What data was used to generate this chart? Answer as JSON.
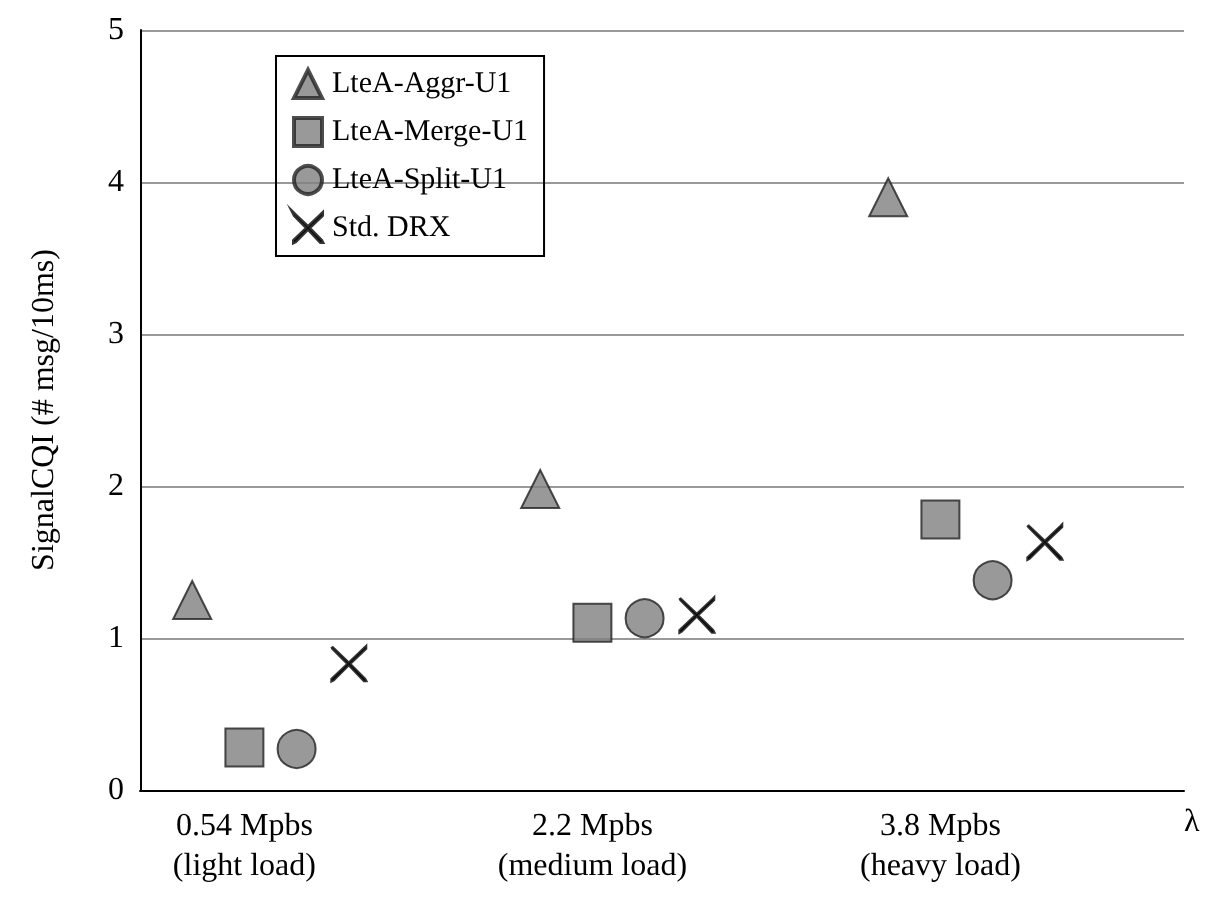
{
  "chart_data": {
    "type": "scatter",
    "ylabel": "SignalCQI (# msg/10ms)",
    "xlabel": "λ",
    "categories": [
      "0.54 Mpbs\n(light load)",
      "2.2 Mpbs\n(medium load)",
      "3.8 Mpbs\n(heavy load)"
    ],
    "series": [
      {
        "name": "LteA-Aggr-U1",
        "color": "#808080",
        "marker": "triangle",
        "values": [
          1.25,
          1.98,
          3.9
        ]
      },
      {
        "name": "LteA-Merge-U1",
        "color": "#808080",
        "marker": "square",
        "values": [
          0.28,
          1.1,
          1.78
        ]
      },
      {
        "name": "LteA-Split-U1",
        "color": "#808080",
        "marker": "circle",
        "values": [
          0.27,
          1.13,
          1.38
        ]
      },
      {
        "name": "Std. DRX",
        "color": "#000000",
        "marker": "cross",
        "values": [
          0.83,
          1.15,
          1.63
        ]
      }
    ],
    "ylim": [
      0,
      5
    ],
    "yticks": [
      0,
      1,
      2,
      3,
      4,
      5
    ],
    "grid": "y",
    "legend": "top left"
  }
}
